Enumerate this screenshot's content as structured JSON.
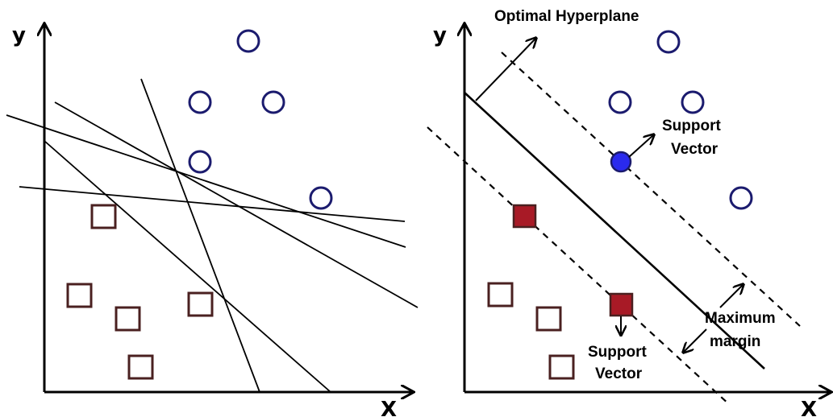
{
  "left_panel": {
    "x_label": "X",
    "y_label": "y"
  },
  "right_panel": {
    "x_label": "X",
    "y_label": "y",
    "hyperplane_label": "Optimal Hyperplane",
    "support_vector_top": [
      "Support",
      "Vector"
    ],
    "support_vector_bottom": [
      "Support",
      "Vector"
    ],
    "margin_label": [
      "Maximum",
      "margin"
    ]
  },
  "colors": {
    "circle_outline": "#1b1b6e",
    "square_outline": "#4a2020",
    "support_circle_fill": "#2a2aee",
    "support_square_fill": "#a81a26"
  }
}
